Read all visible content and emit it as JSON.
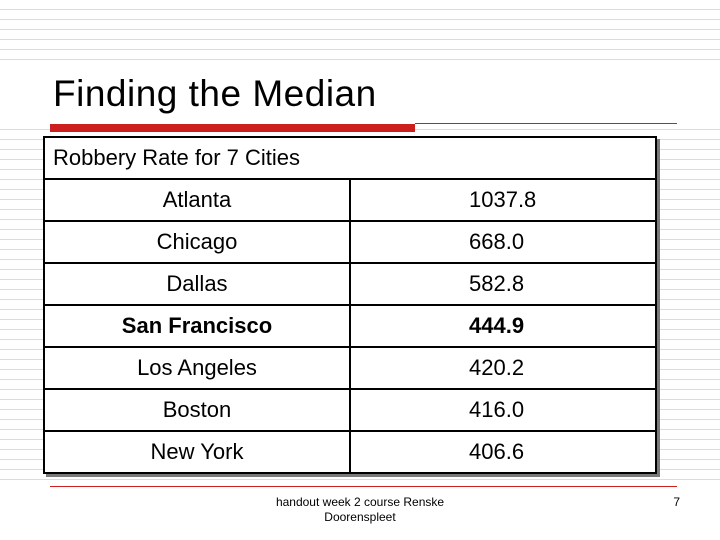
{
  "slide": {
    "title": "Finding the Median"
  },
  "table": {
    "caption": "Robbery Rate for 7 Cities",
    "rows": [
      {
        "city": "Atlanta",
        "rate": "1037.8"
      },
      {
        "city": "Chicago",
        "rate": "668.0"
      },
      {
        "city": "Dallas",
        "rate": "582.8"
      },
      {
        "city": "San Francisco",
        "rate": "444.9"
      },
      {
        "city": "Los Angeles",
        "rate": "420.2"
      },
      {
        "city": "Boston",
        "rate": "416.0"
      },
      {
        "city": "New York",
        "rate": "406.6"
      }
    ],
    "highlighted_row": "San Francisco"
  },
  "footer": {
    "text": "handout week 2 course Renske Doorenspleet",
    "page_number": "7"
  },
  "colors": {
    "accent": "#cc1f1f",
    "background_lines": "#dcdcdc"
  }
}
